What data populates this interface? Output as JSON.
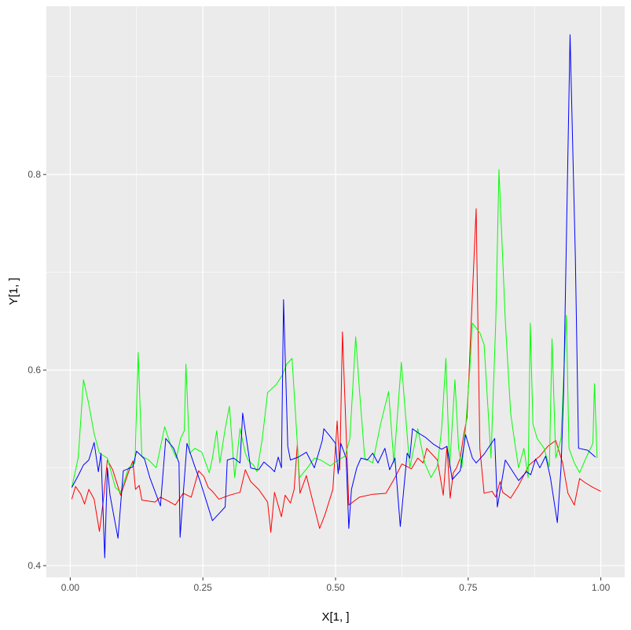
{
  "chart_data": {
    "type": "line",
    "title": "",
    "xlabel": "X[1, ]",
    "ylabel": "Y[1, ]",
    "xlim": [
      -0.045,
      1.045
    ],
    "ylim": [
      0.388,
      0.972
    ],
    "x_ticks": [
      0.0,
      0.25,
      0.5,
      0.75,
      1.0
    ],
    "x_tick_labels": [
      "0.00",
      "0.25",
      "0.50",
      "0.75",
      "1.00"
    ],
    "y_ticks": [
      0.4,
      0.6,
      0.8
    ],
    "y_tick_labels": [
      "0.4",
      "0.6",
      "0.8"
    ],
    "grid": true,
    "background": "#ebebeb",
    "grid_color": "#ffffff",
    "series": [
      {
        "color": "#ff0000",
        "points": [
          [
            0.003,
            0.468
          ],
          [
            0.01,
            0.481
          ],
          [
            0.02,
            0.473
          ],
          [
            0.027,
            0.463
          ],
          [
            0.035,
            0.478
          ],
          [
            0.045,
            0.468
          ],
          [
            0.055,
            0.435
          ],
          [
            0.062,
            0.465
          ],
          [
            0.07,
            0.508
          ],
          [
            0.08,
            0.498
          ],
          [
            0.095,
            0.472
          ],
          [
            0.11,
            0.496
          ],
          [
            0.118,
            0.507
          ],
          [
            0.123,
            0.478
          ],
          [
            0.13,
            0.482
          ],
          [
            0.135,
            0.467
          ],
          [
            0.16,
            0.465
          ],
          [
            0.17,
            0.47
          ],
          [
            0.185,
            0.466
          ],
          [
            0.198,
            0.462
          ],
          [
            0.213,
            0.474
          ],
          [
            0.228,
            0.47
          ],
          [
            0.242,
            0.497
          ],
          [
            0.252,
            0.491
          ],
          [
            0.26,
            0.48
          ],
          [
            0.268,
            0.476
          ],
          [
            0.28,
            0.468
          ],
          [
            0.3,
            0.472
          ],
          [
            0.32,
            0.475
          ],
          [
            0.33,
            0.498
          ],
          [
            0.34,
            0.486
          ],
          [
            0.355,
            0.478
          ],
          [
            0.372,
            0.465
          ],
          [
            0.378,
            0.434
          ],
          [
            0.385,
            0.475
          ],
          [
            0.398,
            0.45
          ],
          [
            0.405,
            0.472
          ],
          [
            0.415,
            0.464
          ],
          [
            0.422,
            0.478
          ],
          [
            0.428,
            0.524
          ],
          [
            0.433,
            0.474
          ],
          [
            0.445,
            0.492
          ],
          [
            0.47,
            0.438
          ],
          [
            0.48,
            0.452
          ],
          [
            0.495,
            0.478
          ],
          [
            0.503,
            0.548
          ],
          [
            0.508,
            0.498
          ],
          [
            0.513,
            0.639
          ],
          [
            0.525,
            0.462
          ],
          [
            0.545,
            0.47
          ],
          [
            0.57,
            0.473
          ],
          [
            0.595,
            0.474
          ],
          [
            0.612,
            0.49
          ],
          [
            0.625,
            0.504
          ],
          [
            0.643,
            0.499
          ],
          [
            0.655,
            0.51
          ],
          [
            0.665,
            0.505
          ],
          [
            0.672,
            0.52
          ],
          [
            0.68,
            0.515
          ],
          [
            0.692,
            0.508
          ],
          [
            0.703,
            0.472
          ],
          [
            0.71,
            0.522
          ],
          [
            0.716,
            0.469
          ],
          [
            0.722,
            0.495
          ],
          [
            0.728,
            0.5
          ],
          [
            0.735,
            0.51
          ],
          [
            0.742,
            0.535
          ],
          [
            0.748,
            0.552
          ],
          [
            0.765,
            0.765
          ],
          [
            0.772,
            0.52
          ],
          [
            0.78,
            0.474
          ],
          [
            0.795,
            0.476
          ],
          [
            0.802,
            0.47
          ],
          [
            0.81,
            0.486
          ],
          [
            0.815,
            0.475
          ],
          [
            0.83,
            0.469
          ],
          [
            0.845,
            0.482
          ],
          [
            0.865,
            0.503
          ],
          [
            0.885,
            0.512
          ],
          [
            0.9,
            0.522
          ],
          [
            0.915,
            0.528
          ],
          [
            0.928,
            0.505
          ],
          [
            0.938,
            0.474
          ],
          [
            0.95,
            0.462
          ],
          [
            0.96,
            0.489
          ],
          [
            0.97,
            0.485
          ],
          [
            0.985,
            0.48
          ],
          [
            1.0,
            0.476
          ]
        ]
      },
      {
        "color": "#00ff00",
        "points": [
          [
            0.003,
            0.48
          ],
          [
            0.015,
            0.51
          ],
          [
            0.025,
            0.59
          ],
          [
            0.035,
            0.565
          ],
          [
            0.045,
            0.535
          ],
          [
            0.055,
            0.515
          ],
          [
            0.07,
            0.51
          ],
          [
            0.085,
            0.48
          ],
          [
            0.095,
            0.475
          ],
          [
            0.11,
            0.5
          ],
          [
            0.122,
            0.505
          ],
          [
            0.128,
            0.618
          ],
          [
            0.135,
            0.512
          ],
          [
            0.148,
            0.508
          ],
          [
            0.162,
            0.5
          ],
          [
            0.178,
            0.542
          ],
          [
            0.19,
            0.522
          ],
          [
            0.2,
            0.51
          ],
          [
            0.208,
            0.53
          ],
          [
            0.215,
            0.538
          ],
          [
            0.218,
            0.606
          ],
          [
            0.225,
            0.515
          ],
          [
            0.235,
            0.52
          ],
          [
            0.248,
            0.516
          ],
          [
            0.262,
            0.495
          ],
          [
            0.268,
            0.51
          ],
          [
            0.276,
            0.538
          ],
          [
            0.282,
            0.505
          ],
          [
            0.292,
            0.54
          ],
          [
            0.3,
            0.563
          ],
          [
            0.31,
            0.49
          ],
          [
            0.32,
            0.54
          ],
          [
            0.33,
            0.515
          ],
          [
            0.335,
            0.508
          ],
          [
            0.345,
            0.503
          ],
          [
            0.352,
            0.496
          ],
          [
            0.362,
            0.53
          ],
          [
            0.372,
            0.577
          ],
          [
            0.388,
            0.585
          ],
          [
            0.4,
            0.595
          ],
          [
            0.408,
            0.606
          ],
          [
            0.418,
            0.612
          ],
          [
            0.432,
            0.49
          ],
          [
            0.447,
            0.5
          ],
          [
            0.46,
            0.51
          ],
          [
            0.472,
            0.508
          ],
          [
            0.49,
            0.502
          ],
          [
            0.505,
            0.508
          ],
          [
            0.518,
            0.512
          ],
          [
            0.527,
            0.53
          ],
          [
            0.538,
            0.634
          ],
          [
            0.545,
            0.58
          ],
          [
            0.555,
            0.51
          ],
          [
            0.57,
            0.505
          ],
          [
            0.585,
            0.545
          ],
          [
            0.6,
            0.578
          ],
          [
            0.61,
            0.505
          ],
          [
            0.624,
            0.608
          ],
          [
            0.64,
            0.5
          ],
          [
            0.655,
            0.54
          ],
          [
            0.668,
            0.505
          ],
          [
            0.68,
            0.49
          ],
          [
            0.692,
            0.502
          ],
          [
            0.7,
            0.54
          ],
          [
            0.708,
            0.612
          ],
          [
            0.715,
            0.5
          ],
          [
            0.725,
            0.59
          ],
          [
            0.732,
            0.52
          ],
          [
            0.738,
            0.5
          ],
          [
            0.745,
            0.54
          ],
          [
            0.753,
            0.6
          ],
          [
            0.758,
            0.648
          ],
          [
            0.772,
            0.638
          ],
          [
            0.78,
            0.626
          ],
          [
            0.793,
            0.51
          ],
          [
            0.802,
            0.65
          ],
          [
            0.808,
            0.805
          ],
          [
            0.82,
            0.65
          ],
          [
            0.83,
            0.556
          ],
          [
            0.838,
            0.525
          ],
          [
            0.845,
            0.5
          ],
          [
            0.855,
            0.52
          ],
          [
            0.863,
            0.49
          ],
          [
            0.867,
            0.648
          ],
          [
            0.872,
            0.545
          ],
          [
            0.88,
            0.53
          ],
          [
            0.893,
            0.52
          ],
          [
            0.903,
            0.501
          ],
          [
            0.908,
            0.632
          ],
          [
            0.915,
            0.51
          ],
          [
            0.925,
            0.53
          ],
          [
            0.935,
            0.656
          ],
          [
            0.94,
            0.52
          ],
          [
            0.95,
            0.505
          ],
          [
            0.96,
            0.495
          ],
          [
            0.972,
            0.51
          ],
          [
            0.985,
            0.525
          ],
          [
            0.988,
            0.586
          ],
          [
            0.993,
            0.51
          ]
        ]
      },
      {
        "color": "#0000ff",
        "points": [
          [
            0.003,
            0.48
          ],
          [
            0.015,
            0.492
          ],
          [
            0.025,
            0.503
          ],
          [
            0.035,
            0.508
          ],
          [
            0.045,
            0.526
          ],
          [
            0.053,
            0.496
          ],
          [
            0.058,
            0.515
          ],
          [
            0.065,
            0.408
          ],
          [
            0.07,
            0.5
          ],
          [
            0.075,
            0.472
          ],
          [
            0.09,
            0.428
          ],
          [
            0.1,
            0.497
          ],
          [
            0.118,
            0.501
          ],
          [
            0.125,
            0.517
          ],
          [
            0.14,
            0.509
          ],
          [
            0.15,
            0.49
          ],
          [
            0.17,
            0.461
          ],
          [
            0.18,
            0.53
          ],
          [
            0.195,
            0.52
          ],
          [
            0.205,
            0.505
          ],
          [
            0.207,
            0.429
          ],
          [
            0.22,
            0.525
          ],
          [
            0.235,
            0.501
          ],
          [
            0.245,
            0.486
          ],
          [
            0.268,
            0.446
          ],
          [
            0.28,
            0.453
          ],
          [
            0.292,
            0.46
          ],
          [
            0.296,
            0.508
          ],
          [
            0.308,
            0.51
          ],
          [
            0.32,
            0.505
          ],
          [
            0.325,
            0.556
          ],
          [
            0.34,
            0.5
          ],
          [
            0.355,
            0.498
          ],
          [
            0.365,
            0.506
          ],
          [
            0.378,
            0.5
          ],
          [
            0.385,
            0.496
          ],
          [
            0.392,
            0.511
          ],
          [
            0.398,
            0.5
          ],
          [
            0.402,
            0.672
          ],
          [
            0.41,
            0.522
          ],
          [
            0.415,
            0.508
          ],
          [
            0.43,
            0.511
          ],
          [
            0.445,
            0.516
          ],
          [
            0.46,
            0.5
          ],
          [
            0.475,
            0.528
          ],
          [
            0.478,
            0.54
          ],
          [
            0.49,
            0.532
          ],
          [
            0.5,
            0.525
          ],
          [
            0.505,
            0.494
          ],
          [
            0.51,
            0.525
          ],
          [
            0.52,
            0.51
          ],
          [
            0.525,
            0.438
          ],
          [
            0.53,
            0.478
          ],
          [
            0.54,
            0.5
          ],
          [
            0.548,
            0.51
          ],
          [
            0.56,
            0.508
          ],
          [
            0.57,
            0.515
          ],
          [
            0.58,
            0.505
          ],
          [
            0.593,
            0.52
          ],
          [
            0.602,
            0.498
          ],
          [
            0.612,
            0.51
          ],
          [
            0.622,
            0.44
          ],
          [
            0.635,
            0.515
          ],
          [
            0.64,
            0.51
          ],
          [
            0.645,
            0.54
          ],
          [
            0.655,
            0.536
          ],
          [
            0.67,
            0.531
          ],
          [
            0.685,
            0.524
          ],
          [
            0.7,
            0.519
          ],
          [
            0.71,
            0.522
          ],
          [
            0.72,
            0.488
          ],
          [
            0.735,
            0.497
          ],
          [
            0.745,
            0.534
          ],
          [
            0.758,
            0.51
          ],
          [
            0.765,
            0.505
          ],
          [
            0.78,
            0.514
          ],
          [
            0.8,
            0.53
          ],
          [
            0.805,
            0.46
          ],
          [
            0.82,
            0.508
          ],
          [
            0.845,
            0.487
          ],
          [
            0.86,
            0.496
          ],
          [
            0.868,
            0.493
          ],
          [
            0.877,
            0.509
          ],
          [
            0.885,
            0.5
          ],
          [
            0.896,
            0.512
          ],
          [
            0.905,
            0.49
          ],
          [
            0.918,
            0.444
          ],
          [
            0.925,
            0.5
          ],
          [
            0.93,
            0.58
          ],
          [
            0.942,
            0.943
          ],
          [
            0.952,
            0.715
          ],
          [
            0.958,
            0.52
          ],
          [
            0.975,
            0.518
          ],
          [
            0.99,
            0.511
          ]
        ]
      }
    ]
  }
}
